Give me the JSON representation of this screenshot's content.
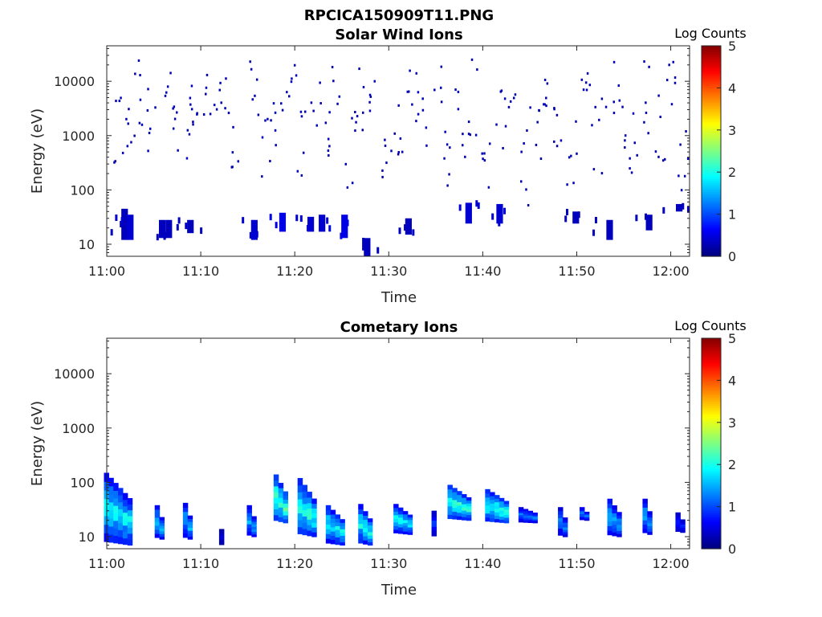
{
  "figure": {
    "title": "RPCICA150909T11.PNG"
  },
  "colormap": "jet",
  "chart_data": [
    {
      "type": "heatmap",
      "title": "Solar Wind Ions",
      "xlabel": "Time",
      "ylabel": "Energy (eV)",
      "y_scale": "log",
      "xlim": [
        "11:00",
        "12:02"
      ],
      "ylim": [
        6,
        45000
      ],
      "x_ticks": [
        "11:00",
        "11:10",
        "11:20",
        "11:30",
        "11:40",
        "11:50",
        "12:00"
      ],
      "y_ticks": [
        "10",
        "100",
        "1000",
        "10000"
      ],
      "colorbar": {
        "label": "Log Counts",
        "min": 0,
        "max": 5,
        "ticks": [
          "0",
          "1",
          "2",
          "3",
          "4",
          "5"
        ]
      },
      "low_energy_blocks": [
        {
          "t": 1.8,
          "e": [
            12,
            45
          ],
          "v": 0.3
        },
        {
          "t": 2.4,
          "e": [
            12,
            35
          ],
          "v": 0.4
        },
        {
          "t": 5.8,
          "e": [
            13,
            28
          ],
          "v": 0.3
        },
        {
          "t": 6.5,
          "e": [
            13,
            28
          ],
          "v": 0.3
        },
        {
          "t": 8.8,
          "e": [
            16,
            28
          ],
          "v": 0.3
        },
        {
          "t": 15.6,
          "e": [
            12,
            28
          ],
          "v": 0.4
        },
        {
          "t": 18.6,
          "e": [
            17,
            38
          ],
          "v": 0.5
        },
        {
          "t": 21.6,
          "e": [
            17,
            32
          ],
          "v": 0.4
        },
        {
          "t": 22.8,
          "e": [
            17,
            35
          ],
          "v": 0.4
        },
        {
          "t": 25.2,
          "e": [
            13,
            35
          ],
          "v": 0.5
        },
        {
          "t": 27.6,
          "e": [
            6,
            13
          ],
          "v": 0.3
        },
        {
          "t": 32.0,
          "e": [
            15,
            30
          ],
          "v": 0.3
        },
        {
          "t": 38.4,
          "e": [
            24,
            58
          ],
          "v": 0.4
        },
        {
          "t": 41.7,
          "e": [
            24,
            55
          ],
          "v": 0.4
        },
        {
          "t": 49.8,
          "e": [
            24,
            40
          ],
          "v": 0.3
        },
        {
          "t": 53.4,
          "e": [
            12,
            28
          ],
          "v": 0.3
        },
        {
          "t": 57.6,
          "e": [
            18,
            35
          ],
          "v": 0.3
        },
        {
          "t": 60.8,
          "e": [
            40,
            55
          ],
          "v": 0.3
        }
      ],
      "sparse_points": [
        {
          "t": 1.2,
          "e": 1500
        },
        {
          "t": 2.5,
          "e": 3200
        },
        {
          "t": 3.5,
          "e": 6000
        },
        {
          "t": 4.8,
          "e": 2100
        },
        {
          "t": 6.2,
          "e": 8000
        },
        {
          "t": 7.0,
          "e": 700
        },
        {
          "t": 8.5,
          "e": 1500
        },
        {
          "t": 9.3,
          "e": 7500
        },
        {
          "t": 10.8,
          "e": 3500
        },
        {
          "t": 12.1,
          "e": 9000
        },
        {
          "t": 13.4,
          "e": 1200
        },
        {
          "t": 15.6,
          "e": 11000
        },
        {
          "t": 16.9,
          "e": 450
        },
        {
          "t": 18.1,
          "e": 2000
        },
        {
          "t": 19.5,
          "e": 9000
        },
        {
          "t": 20.7,
          "e": 700
        },
        {
          "t": 22.2,
          "e": 6500
        },
        {
          "t": 23.5,
          "e": 1600
        },
        {
          "t": 24.5,
          "e": 19000
        },
        {
          "t": 25.9,
          "e": 550
        },
        {
          "t": 27.0,
          "e": 4000
        },
        {
          "t": 28.4,
          "e": 9000
        },
        {
          "t": 29.7,
          "e": 300
        },
        {
          "t": 31.0,
          "e": 1100
        },
        {
          "t": 32.5,
          "e": 7500
        },
        {
          "t": 33.6,
          "e": 2500
        },
        {
          "t": 35.0,
          "e": 10000
        },
        {
          "t": 36.3,
          "e": 450
        },
        {
          "t": 37.6,
          "e": 1500
        },
        {
          "t": 39.0,
          "e": 5000
        },
        {
          "t": 40.4,
          "e": 380
        },
        {
          "t": 41.8,
          "e": 2800
        },
        {
          "t": 43.0,
          "e": 9500
        },
        {
          "t": 44.2,
          "e": 260
        },
        {
          "t": 45.5,
          "e": 1300
        },
        {
          "t": 46.8,
          "e": 11000
        },
        {
          "t": 48.0,
          "e": 2300
        },
        {
          "t": 49.4,
          "e": 420
        },
        {
          "t": 50.8,
          "e": 4200
        },
        {
          "t": 52.0,
          "e": 1000
        },
        {
          "t": 53.5,
          "e": 8500
        },
        {
          "t": 54.8,
          "e": 3000
        },
        {
          "t": 56.0,
          "e": 700
        },
        {
          "t": 57.4,
          "e": 5500
        },
        {
          "t": 58.7,
          "e": 1400
        },
        {
          "t": 60.0,
          "e": 5000
        },
        {
          "t": 61.3,
          "e": 300
        }
      ]
    },
    {
      "type": "heatmap",
      "title": "Cometary Ions",
      "xlabel": "Time",
      "ylabel": "Energy (eV)",
      "y_scale": "log",
      "xlim": [
        "11:00",
        "12:02"
      ],
      "ylim": [
        6,
        45000
      ],
      "x_ticks": [
        "11:00",
        "11:10",
        "11:20",
        "11:30",
        "11:40",
        "11:50",
        "12:00"
      ],
      "y_ticks": [
        "10",
        "100",
        "1000",
        "10000"
      ],
      "colorbar": {
        "label": "Log Counts",
        "min": 0,
        "max": 5,
        "ticks": [
          "0",
          "1",
          "2",
          "3",
          "4",
          "5"
        ]
      },
      "bursts": [
        {
          "t": 1.2,
          "e": [
            7,
            150
          ],
          "peak": 2.2,
          "w": 2.8
        },
        {
          "t": 5.6,
          "e": [
            9,
            38
          ],
          "peak": 2.0,
          "w": 1.2
        },
        {
          "t": 8.6,
          "e": [
            9,
            42
          ],
          "peak": 1.8,
          "w": 1.0
        },
        {
          "t": 12.2,
          "e": [
            7,
            16
          ],
          "peak": 0.5,
          "w": 0.4
        },
        {
          "t": 15.4,
          "e": [
            10,
            38
          ],
          "peak": 1.8,
          "w": 1.2
        },
        {
          "t": 18.5,
          "e": [
            18,
            140
          ],
          "peak": 2.7,
          "w": 1.6
        },
        {
          "t": 21.3,
          "e": [
            10,
            120
          ],
          "peak": 2.4,
          "w": 2.0
        },
        {
          "t": 24.3,
          "e": [
            7,
            38
          ],
          "peak": 2.2,
          "w": 1.8
        },
        {
          "t": 27.5,
          "e": [
            7,
            40
          ],
          "peak": 2.3,
          "w": 1.7
        },
        {
          "t": 31.5,
          "e": [
            11,
            40
          ],
          "peak": 2.2,
          "w": 2.2
        },
        {
          "t": 34.8,
          "e": [
            10,
            38
          ],
          "peak": 1.0,
          "w": 0.6
        },
        {
          "t": 37.5,
          "e": [
            20,
            90
          ],
          "peak": 2.5,
          "w": 2.6
        },
        {
          "t": 41.5,
          "e": [
            18,
            75
          ],
          "peak": 2.5,
          "w": 2.6
        },
        {
          "t": 44.8,
          "e": [
            18,
            35
          ],
          "peak": 1.5,
          "w": 1.8
        },
        {
          "t": 48.5,
          "e": [
            10,
            35
          ],
          "peak": 1.5,
          "w": 0.8
        },
        {
          "t": 50.8,
          "e": [
            20,
            35
          ],
          "peak": 1.5,
          "w": 1.2
        },
        {
          "t": 54.0,
          "e": [
            10,
            50
          ],
          "peak": 1.8,
          "w": 1.4
        },
        {
          "t": 57.5,
          "e": [
            11,
            50
          ],
          "peak": 1.8,
          "w": 1.2
        },
        {
          "t": 61.0,
          "e": [
            12,
            28
          ],
          "peak": 1.0,
          "w": 0.8
        }
      ]
    }
  ]
}
